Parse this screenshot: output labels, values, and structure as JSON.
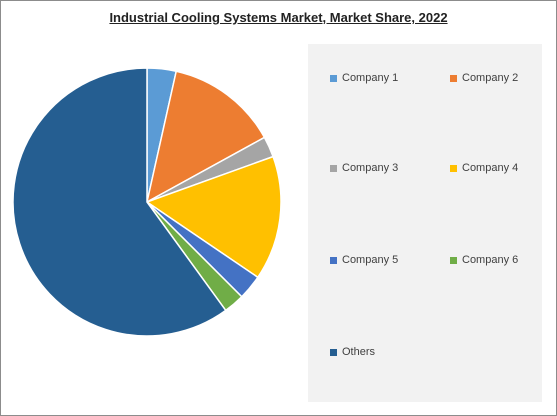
{
  "chart_data": {
    "type": "pie",
    "title": "Industrial Cooling Systems Market, Market Share, 2022",
    "slices": [
      {
        "name": "Company 1",
        "value": 3.5,
        "color": "#5b9bd5"
      },
      {
        "name": "Company 2",
        "value": 13.5,
        "color": "#ed7d31"
      },
      {
        "name": "Company 3",
        "value": 2.5,
        "color": "#a5a5a5"
      },
      {
        "name": "Company 4",
        "value": 15.0,
        "color": "#ffc000"
      },
      {
        "name": "Company 5",
        "value": 3.0,
        "color": "#4472c4"
      },
      {
        "name": "Company 6",
        "value": 2.5,
        "color": "#70ad47"
      },
      {
        "name": "Others",
        "value": 60.0,
        "color": "#255e91"
      }
    ],
    "legend_position": "right"
  }
}
